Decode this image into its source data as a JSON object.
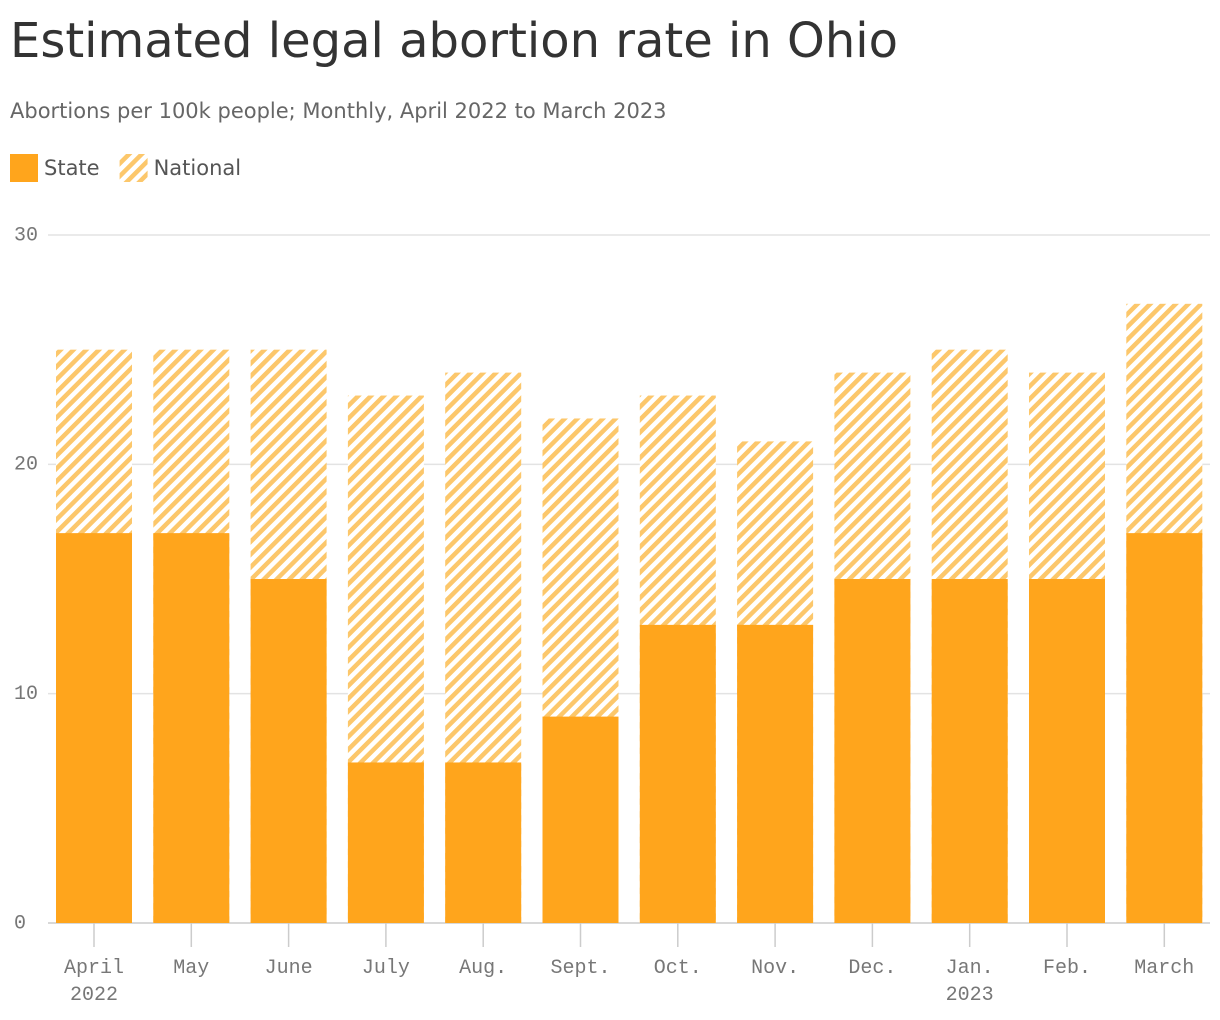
{
  "chart_data": {
    "type": "bar",
    "title": "Estimated legal abortion rate in Ohio",
    "subtitle": "Abortions per 100k people; Monthly, April 2022 to March 2023",
    "categories": [
      "April 2022",
      "May",
      "June",
      "July",
      "Aug.",
      "Sept.",
      "Oct.",
      "Nov.",
      "Dec.",
      "Jan. 2023",
      "Feb.",
      "March"
    ],
    "series": [
      {
        "name": "State",
        "color": "#ffa51c",
        "values": [
          17,
          17,
          15,
          7,
          7,
          9,
          13,
          13,
          15,
          15,
          15,
          17
        ]
      },
      {
        "name": "National",
        "color": "#fcc76b",
        "pattern": "hatch",
        "values": [
          25,
          25,
          25,
          23,
          24,
          22,
          23,
          21,
          24,
          25,
          24,
          27
        ]
      }
    ],
    "ylim": [
      0,
      30
    ],
    "yticks": [
      0,
      10,
      20,
      30
    ],
    "grid": true
  }
}
